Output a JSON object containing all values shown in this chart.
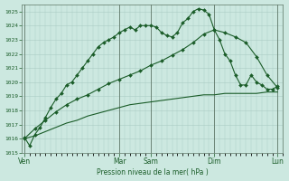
{
  "xlabel": "Pression niveau de la mer( hPa )",
  "bg_color": "#cce8e0",
  "grid_color": "#aaccc4",
  "line_color_dark": "#1a5c28",
  "line_color_med": "#2a7a38",
  "ylim": [
    1015,
    1025.5
  ],
  "yticks": [
    1015,
    1016,
    1017,
    1018,
    1019,
    1020,
    1021,
    1022,
    1023,
    1024,
    1025
  ],
  "day_labels": [
    "Ven",
    "Mar",
    "Sam",
    "Dim",
    "Lun"
  ],
  "day_positions": [
    0,
    18,
    24,
    36,
    48
  ],
  "xlim": [
    -0.5,
    49
  ],
  "series1_x": [
    0,
    1,
    2,
    3,
    4,
    5,
    6,
    7,
    8,
    9,
    10,
    11,
    12,
    13,
    14,
    15,
    16,
    17,
    18,
    19,
    20,
    21,
    22,
    23,
    24,
    25,
    26,
    27,
    28,
    29,
    30,
    31,
    32,
    33,
    34,
    35,
    36,
    37,
    38,
    39,
    40,
    41,
    42,
    43,
    44,
    45,
    46,
    47,
    48
  ],
  "series1_y": [
    1016.1,
    1015.5,
    1016.3,
    1016.8,
    1017.5,
    1018.2,
    1018.8,
    1019.2,
    1019.8,
    1020.0,
    1020.5,
    1021.0,
    1021.5,
    1022.0,
    1022.5,
    1022.8,
    1023.0,
    1023.2,
    1023.5,
    1023.7,
    1023.9,
    1023.7,
    1024.0,
    1024.0,
    1024.0,
    1023.9,
    1023.5,
    1023.3,
    1023.2,
    1023.5,
    1024.2,
    1024.5,
    1025.0,
    1025.2,
    1025.1,
    1024.8,
    1023.7,
    1023.0,
    1022.0,
    1021.5,
    1020.5,
    1019.8,
    1019.8,
    1020.5,
    1020.0,
    1019.8,
    1019.5,
    1019.5,
    1019.7
  ],
  "series2_x": [
    0,
    2,
    4,
    6,
    8,
    10,
    12,
    14,
    16,
    18,
    20,
    22,
    24,
    26,
    28,
    30,
    32,
    34,
    36,
    38,
    40,
    42,
    44,
    46,
    48
  ],
  "series2_y": [
    1016.0,
    1016.7,
    1017.3,
    1017.9,
    1018.4,
    1018.8,
    1019.1,
    1019.5,
    1019.9,
    1020.2,
    1020.5,
    1020.8,
    1021.2,
    1021.5,
    1021.9,
    1022.3,
    1022.8,
    1023.4,
    1023.7,
    1023.5,
    1023.2,
    1022.8,
    1021.8,
    1020.5,
    1019.6
  ],
  "series3_x": [
    0,
    2,
    4,
    6,
    8,
    10,
    12,
    14,
    16,
    18,
    20,
    22,
    24,
    26,
    28,
    30,
    32,
    34,
    36,
    38,
    40,
    42,
    44,
    46,
    48
  ],
  "series3_y": [
    1016.0,
    1016.2,
    1016.5,
    1016.8,
    1017.1,
    1017.3,
    1017.6,
    1017.8,
    1018.0,
    1018.2,
    1018.4,
    1018.5,
    1018.6,
    1018.7,
    1018.8,
    1018.9,
    1019.0,
    1019.1,
    1019.1,
    1019.2,
    1019.2,
    1019.2,
    1019.2,
    1019.3,
    1019.3
  ]
}
